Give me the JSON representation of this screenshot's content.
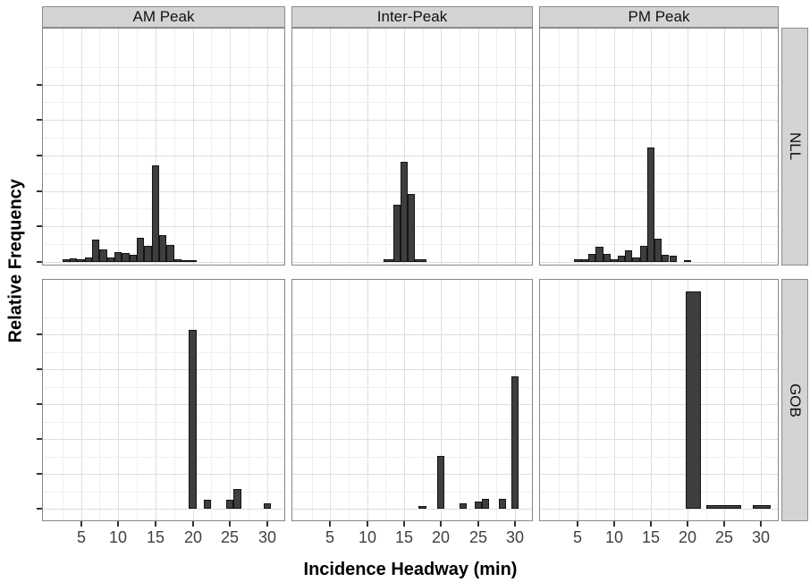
{
  "figure": {
    "x_axis_title": "Incidence Headway (min)",
    "y_axis_title": "Relative Frequency"
  },
  "colors": {
    "bar_fill": "#3e3e3e",
    "bar_stroke": "#141414",
    "strip_background": "#d4d4d4",
    "strip_border": "#8c8c8c",
    "panel_border": "#878787",
    "grid_major": "#dedede",
    "grid_minor": "#efefef",
    "tick_mark": "#333333",
    "tick_label": "#404040"
  },
  "chart_data": {
    "type": "bar",
    "subtype": "faceted_histogram",
    "title": "",
    "xlabel": "Incidence Headway (min)",
    "ylabel": "Relative Frequency",
    "x_ticks": [
      5,
      10,
      15,
      20,
      25,
      30
    ],
    "xlim": [
      -0.1,
      32.3
    ],
    "y_axis_note": "y-axis shows 6 unlabeled tick marks per facet row; bar heights below are relative frequency expressed as fraction of panel height (0-1)",
    "grid": "major and minor gridlines on",
    "legend": "none",
    "facet_cols": [
      "AM Peak",
      "Inter-Peak",
      "PM Peak"
    ],
    "facet_rows": [
      "NLL",
      "GOB"
    ],
    "bin_width_min": 1,
    "panels": [
      {
        "col": "AM Peak",
        "row": "NLL",
        "bars": [
          {
            "x": 3,
            "h": 0.01
          },
          {
            "x": 4,
            "h": 0.014
          },
          {
            "x": 5,
            "h": 0.01
          },
          {
            "x": 6,
            "h": 0.018
          },
          {
            "x": 7,
            "h": 0.095
          },
          {
            "x": 8,
            "h": 0.055
          },
          {
            "x": 9,
            "h": 0.018
          },
          {
            "x": 10,
            "h": 0.042
          },
          {
            "x": 11,
            "h": 0.038
          },
          {
            "x": 12,
            "h": 0.03
          },
          {
            "x": 13,
            "h": 0.105
          },
          {
            "x": 14,
            "h": 0.068
          },
          {
            "x": 15,
            "h": 0.415
          },
          {
            "x": 16,
            "h": 0.115
          },
          {
            "x": 17,
            "h": 0.072
          },
          {
            "x": 18,
            "h": 0.012
          },
          {
            "x": 19.5,
            "h": 0.008,
            "w": 2
          }
        ]
      },
      {
        "col": "Inter-Peak",
        "row": "NLL",
        "bars": [
          {
            "x": 13,
            "h": 0.012,
            "w": 1.6
          },
          {
            "x": 14,
            "h": 0.245
          },
          {
            "x": 15,
            "h": 0.43
          },
          {
            "x": 16,
            "h": 0.29
          },
          {
            "x": 17.3,
            "h": 0.012,
            "w": 1.6
          }
        ]
      },
      {
        "col": "PM Peak",
        "row": "NLL",
        "bars": [
          {
            "x": 5,
            "h": 0.013
          },
          {
            "x": 6,
            "h": 0.013
          },
          {
            "x": 7,
            "h": 0.036
          },
          {
            "x": 8,
            "h": 0.066
          },
          {
            "x": 9,
            "h": 0.036
          },
          {
            "x": 10,
            "h": 0.013
          },
          {
            "x": 11,
            "h": 0.026
          },
          {
            "x": 12,
            "h": 0.05
          },
          {
            "x": 13,
            "h": 0.02
          },
          {
            "x": 14,
            "h": 0.07
          },
          {
            "x": 15,
            "h": 0.49
          },
          {
            "x": 16,
            "h": 0.1
          },
          {
            "x": 17,
            "h": 0.032
          },
          {
            "x": 18,
            "h": 0.026
          },
          {
            "x": 20,
            "h": 0.006
          }
        ]
      },
      {
        "col": "AM Peak",
        "row": "GOB",
        "bars": [
          {
            "x": 20,
            "h": 0.78
          },
          {
            "x": 22,
            "h": 0.04
          },
          {
            "x": 25,
            "h": 0.038
          },
          {
            "x": 26,
            "h": 0.085
          },
          {
            "x": 30,
            "h": 0.025
          }
        ]
      },
      {
        "col": "Inter-Peak",
        "row": "GOB",
        "bars": [
          {
            "x": 17.5,
            "h": 0.012
          },
          {
            "x": 20,
            "h": 0.23
          },
          {
            "x": 23,
            "h": 0.022
          },
          {
            "x": 25,
            "h": 0.03
          },
          {
            "x": 26,
            "h": 0.044
          },
          {
            "x": 28.3,
            "h": 0.044
          },
          {
            "x": 30,
            "h": 0.58
          }
        ]
      },
      {
        "col": "PM Peak",
        "row": "GOB",
        "bars": [
          {
            "x": 20.75,
            "h": 0.95,
            "w": 2.1
          },
          {
            "x": 24.9,
            "h": 0.014,
            "w": 4.8
          },
          {
            "x": 30.1,
            "h": 0.014,
            "w": 2.4
          }
        ]
      }
    ]
  }
}
